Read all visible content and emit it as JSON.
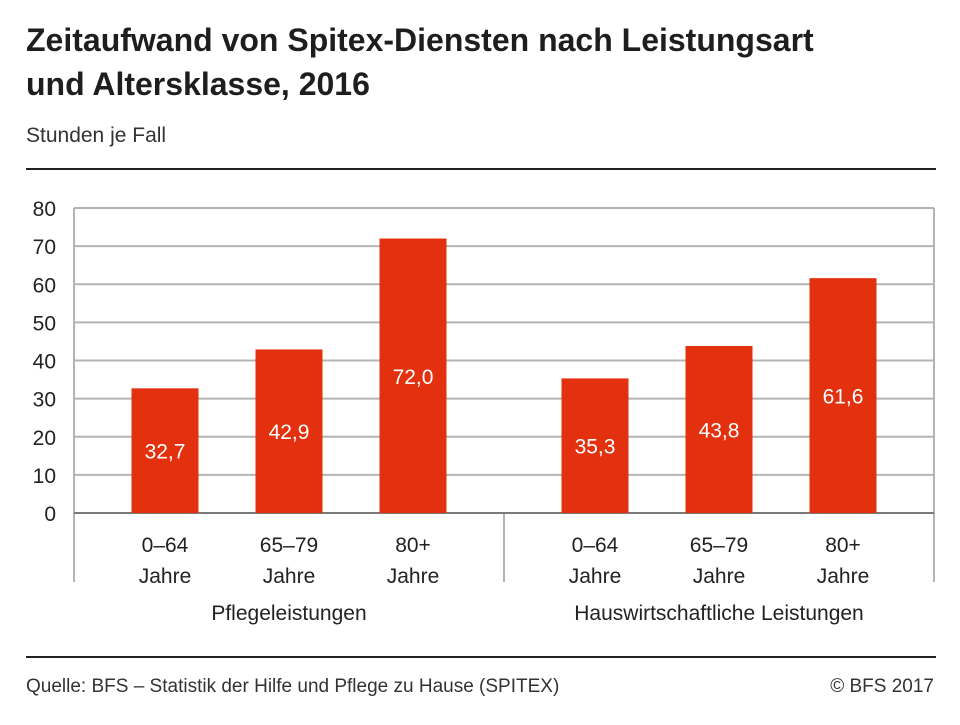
{
  "header": {
    "title_line1": "Zeitaufwand von Spitex-Diensten nach Leistungsart",
    "title_line2": "und Altersklasse, 2016",
    "subtitle": "Stunden je Fall"
  },
  "footer": {
    "source": "Quelle: BFS – Statistik der Hilfe und Pflege zu Hause (SPITEX)",
    "copyright": "© BFS 2017"
  },
  "colors": {
    "bar": "#e3300e",
    "grid": "#b4b4b4",
    "axis": "#7a7a7a",
    "bar_label": "#ffffff",
    "text": "#222222"
  },
  "chart_data": {
    "type": "bar",
    "ylim": [
      0,
      80
    ],
    "yticks": [
      "0",
      "10",
      "20",
      "30",
      "40",
      "50",
      "60",
      "70",
      "80"
    ],
    "grid": true,
    "groups": [
      {
        "name": "Pflegeleistungen",
        "categories": [
          {
            "line1": "0–64",
            "line2": "Jahre"
          },
          {
            "line1": "65–79",
            "line2": "Jahre"
          },
          {
            "line1": "80+",
            "line2": "Jahre"
          }
        ],
        "values": [
          32.7,
          42.9,
          72.0
        ],
        "labels": [
          "32,7",
          "42,9",
          "72,0"
        ]
      },
      {
        "name": "Hauswirtschaftliche Leistungen",
        "categories": [
          {
            "line1": "0–64",
            "line2": "Jahre"
          },
          {
            "line1": "65–79",
            "line2": "Jahre"
          },
          {
            "line1": "80+",
            "line2": "Jahre"
          }
        ],
        "values": [
          35.3,
          43.8,
          61.6
        ],
        "labels": [
          "35,3",
          "43,8",
          "61,6"
        ]
      }
    ]
  }
}
